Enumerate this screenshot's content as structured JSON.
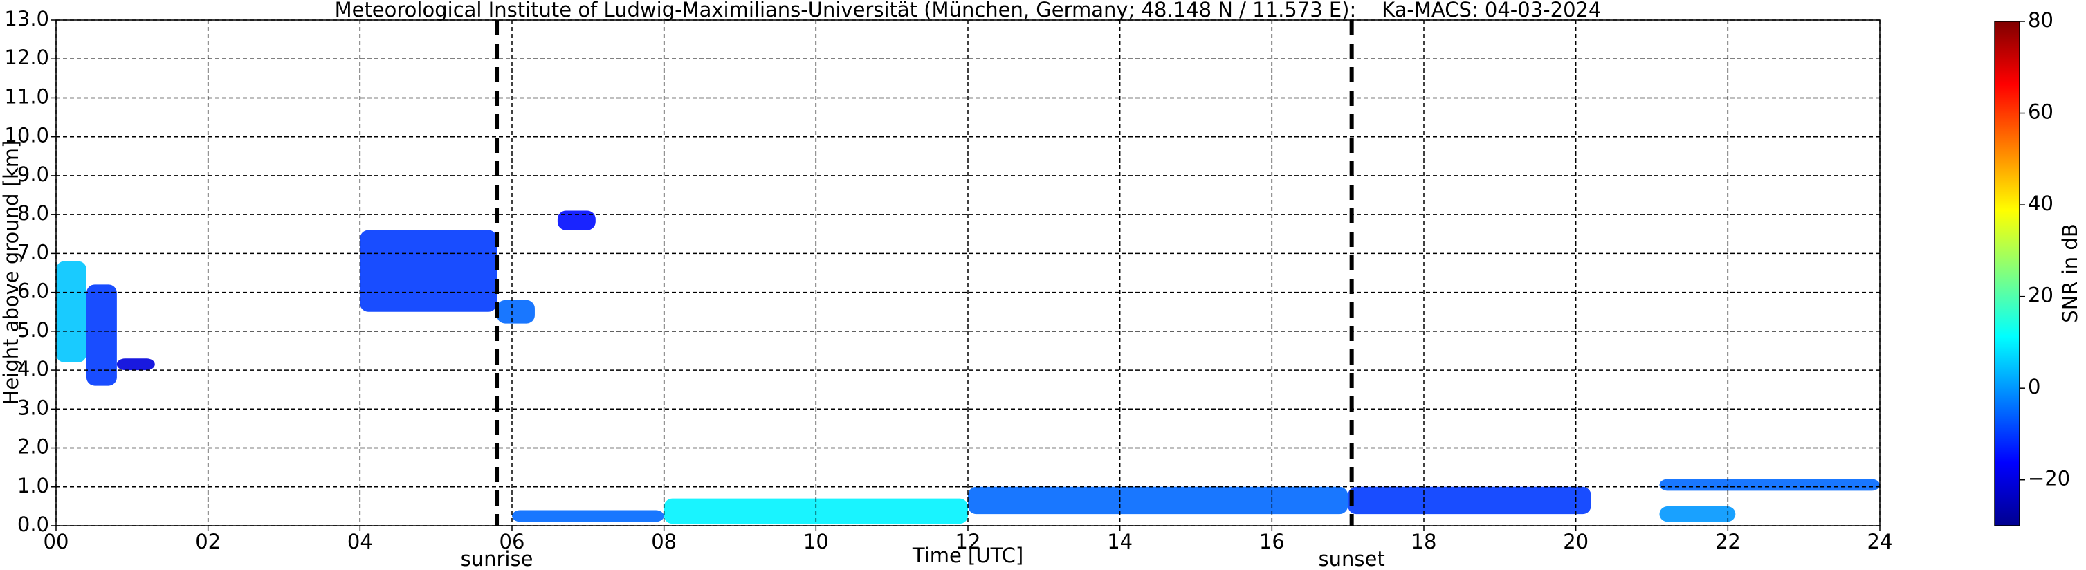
{
  "chart_data": {
    "type": "heatmap",
    "title": "Meteorological Institute of Ludwig-Maximilians-Universität (München, Germany; 48.148 N / 11.573 E):    Ka-MACS: 04-03-2024",
    "xlabel": "Time [UTC]",
    "ylabel": "Height above ground [km]",
    "xlim": [
      0,
      24
    ],
    "ylim": [
      0,
      13
    ],
    "xticks": [
      {
        "value": 0,
        "label": "00"
      },
      {
        "value": 2,
        "label": "02"
      },
      {
        "value": 4,
        "label": "04"
      },
      {
        "value": 6,
        "label": "06"
      },
      {
        "value": 8,
        "label": "08"
      },
      {
        "value": 10,
        "label": "10"
      },
      {
        "value": 12,
        "label": "12"
      },
      {
        "value": 14,
        "label": "14"
      },
      {
        "value": 16,
        "label": "16"
      },
      {
        "value": 18,
        "label": "18"
      },
      {
        "value": 20,
        "label": "20"
      },
      {
        "value": 22,
        "label": "22"
      },
      {
        "value": 24,
        "label": "24"
      }
    ],
    "yticks": [
      {
        "value": 0,
        "label": "0.0"
      },
      {
        "value": 1,
        "label": "1.0"
      },
      {
        "value": 2,
        "label": "2.0"
      },
      {
        "value": 3,
        "label": "3.0"
      },
      {
        "value": 4,
        "label": "4.0"
      },
      {
        "value": 5,
        "label": "5.0"
      },
      {
        "value": 6,
        "label": "6.0"
      },
      {
        "value": 7,
        "label": "7.0"
      },
      {
        "value": 8,
        "label": "8.0"
      },
      {
        "value": 9,
        "label": "9.0"
      },
      {
        "value": 10,
        "label": "10.0"
      },
      {
        "value": 11,
        "label": "11.0"
      },
      {
        "value": 12,
        "label": "12.0"
      },
      {
        "value": 13,
        "label": "13.0"
      }
    ],
    "grid": true,
    "colorbar_label": "SNR in dB",
    "clim": [
      -30,
      80
    ],
    "cticks": [
      {
        "value": -20,
        "label": "−20"
      },
      0,
      20,
      40,
      60,
      80
    ],
    "cells": [
      {
        "x": [
          0,
          0.4
        ],
        "y": [
          4.2,
          6.8
        ],
        "value": 5
      },
      {
        "x": [
          0.4,
          0.8
        ],
        "y": [
          3.6,
          6.2
        ],
        "value": -10
      },
      {
        "x": [
          0.8,
          1.3
        ],
        "y": [
          4.0,
          4.3
        ],
        "value": -20
      },
      {
        "x": [
          4.0,
          5.8
        ],
        "y": [
          5.5,
          7.6
        ],
        "value": -10
      },
      {
        "x": [
          5.8,
          6.3
        ],
        "y": [
          5.2,
          5.8
        ],
        "value": -5
      },
      {
        "x": [
          6.6,
          7.1
        ],
        "y": [
          7.6,
          8.1
        ],
        "value": -15
      },
      {
        "x": [
          6.0,
          8.0
        ],
        "y": [
          0.1,
          0.4
        ],
        "value": -5
      },
      {
        "x": [
          8.0,
          12.0
        ],
        "y": [
          0.05,
          0.7
        ],
        "value": 10
      },
      {
        "x": [
          12.0,
          17.0
        ],
        "y": [
          0.3,
          1.0
        ],
        "value": -5
      },
      {
        "x": [
          17.0,
          20.2
        ],
        "y": [
          0.3,
          1.0
        ],
        "value": -10
      },
      {
        "x": [
          21.1,
          22.1
        ],
        "y": [
          0.1,
          0.5
        ],
        "value": 0
      },
      {
        "x": [
          21.1,
          24.0
        ],
        "y": [
          0.9,
          1.2
        ],
        "value": -5
      }
    ],
    "annotations": [
      {
        "text": "sunrise",
        "x": 5.8
      },
      {
        "text": "sunset",
        "x": 17.05
      }
    ]
  }
}
